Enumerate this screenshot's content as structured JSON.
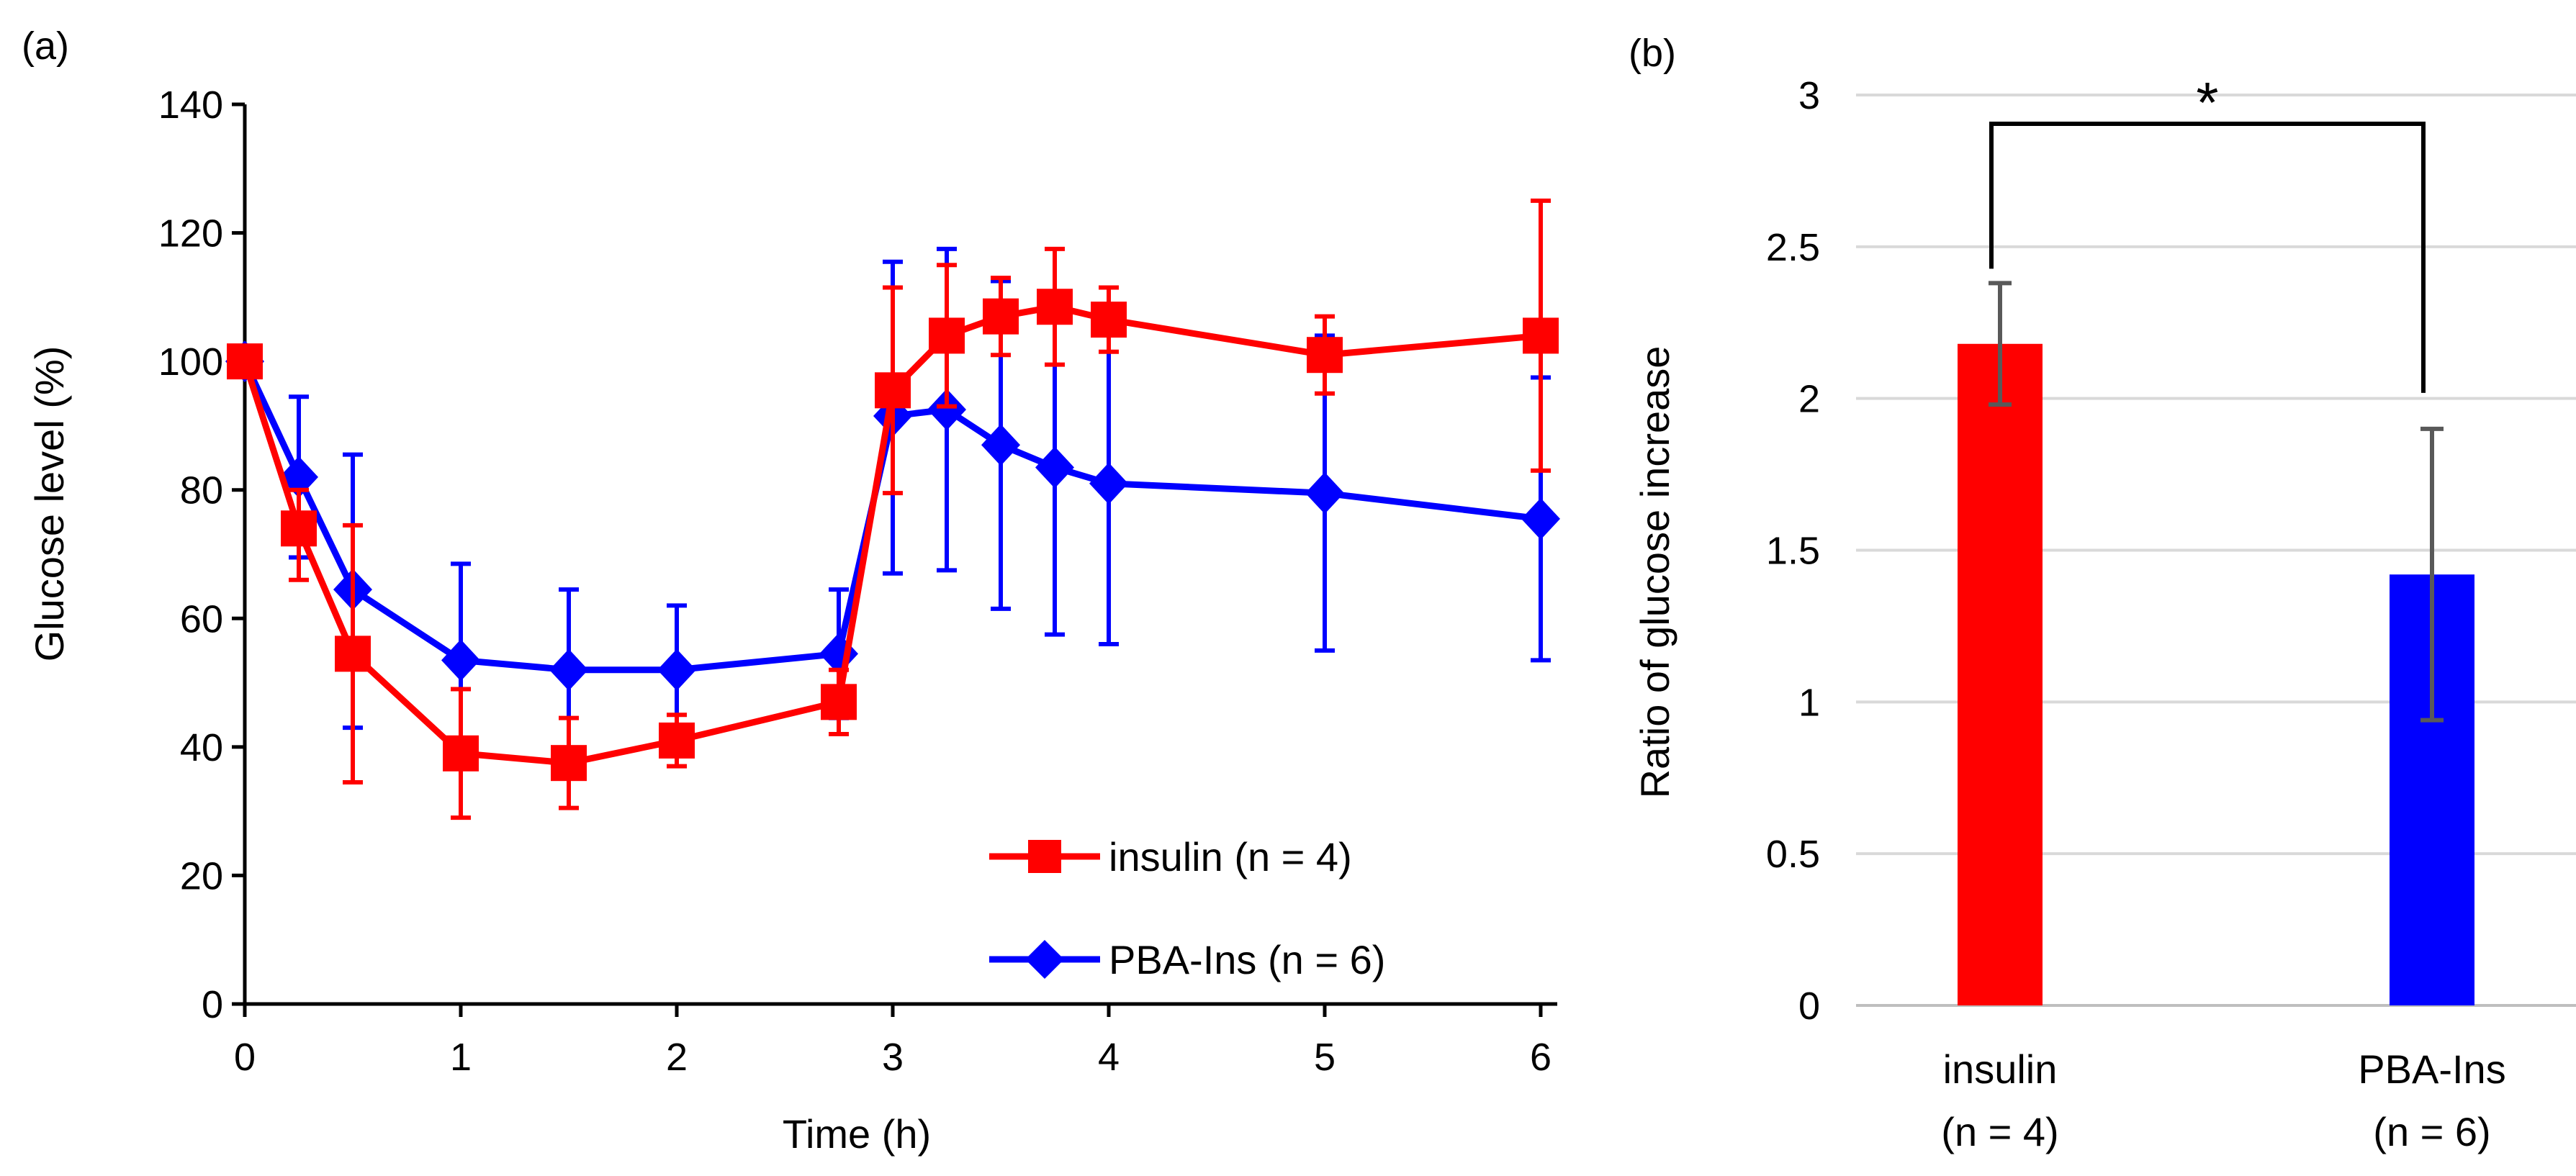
{
  "chart_data": [
    {
      "panel": "(a)",
      "type": "line",
      "xlabel": "Time (h)",
      "ylabel": "Glucose level (%)",
      "xlim": [
        0,
        6
      ],
      "ylim": [
        0,
        140
      ],
      "xticks": [
        0,
        1,
        2,
        3,
        4,
        5,
        6
      ],
      "yticks": [
        0,
        20,
        40,
        60,
        80,
        100,
        120,
        140
      ],
      "legend_position": "bottom-right",
      "series": [
        {
          "name": "insulin (n = 4)",
          "color": "#ff0000",
          "marker": "square",
          "x": [
            0,
            0.25,
            0.5,
            1,
            1.5,
            2,
            2.75,
            3,
            3.25,
            3.5,
            3.75,
            4,
            5,
            6
          ],
          "y": [
            100,
            74,
            54.5,
            39,
            37.5,
            41,
            47,
            95.5,
            104,
            107,
            108.5,
            106.5,
            101,
            104
          ],
          "err_up": [
            0,
            6,
            20,
            10,
            7,
            4,
            5,
            16,
            11,
            6,
            9,
            5,
            6,
            21
          ],
          "err_down": [
            0,
            8,
            20,
            10,
            7,
            4,
            5,
            16,
            11,
            6,
            9,
            5,
            6,
            21
          ]
        },
        {
          "name": "PBA-Ins (n = 6)",
          "color": "#0000ff",
          "marker": "diamond",
          "x": [
            0,
            0.25,
            0.5,
            1,
            1.5,
            2,
            2.75,
            3,
            3.25,
            3.5,
            3.75,
            4,
            5,
            6
          ],
          "y": [
            100,
            82,
            64.5,
            53.5,
            52,
            52,
            54.5,
            91.5,
            92.5,
            87,
            83.5,
            81,
            79.5,
            75.5
          ],
          "err_up": [
            0,
            12.5,
            21,
            15,
            12.5,
            10,
            10,
            24,
            25,
            25.5,
            26,
            25,
            24.5,
            22
          ],
          "err_down": [
            0,
            12.5,
            21.5,
            15,
            12.5,
            10,
            10,
            24.5,
            25,
            25.5,
            26,
            25,
            24.5,
            22
          ]
        }
      ]
    },
    {
      "panel": "(b)",
      "type": "bar",
      "xlabel": "",
      "ylabel": "Ratio of glucose increase",
      "ylim": [
        0,
        3
      ],
      "yticks": [
        0,
        0.5,
        1,
        1.5,
        2,
        2.5,
        3
      ],
      "ytick_labels": [
        "0",
        "0.5",
        "1",
        "1.5",
        "2",
        "2.5",
        "3"
      ],
      "grid": true,
      "categories": [
        {
          "line1": "insulin",
          "line2": "(n = 4)"
        },
        {
          "line1": "PBA-Ins",
          "line2": "(n = 6)"
        }
      ],
      "values": [
        2.18,
        1.42
      ],
      "errors": [
        0.2,
        0.48
      ],
      "colors": [
        "#ff0000",
        "#0000ff"
      ],
      "significance": "*"
    }
  ]
}
